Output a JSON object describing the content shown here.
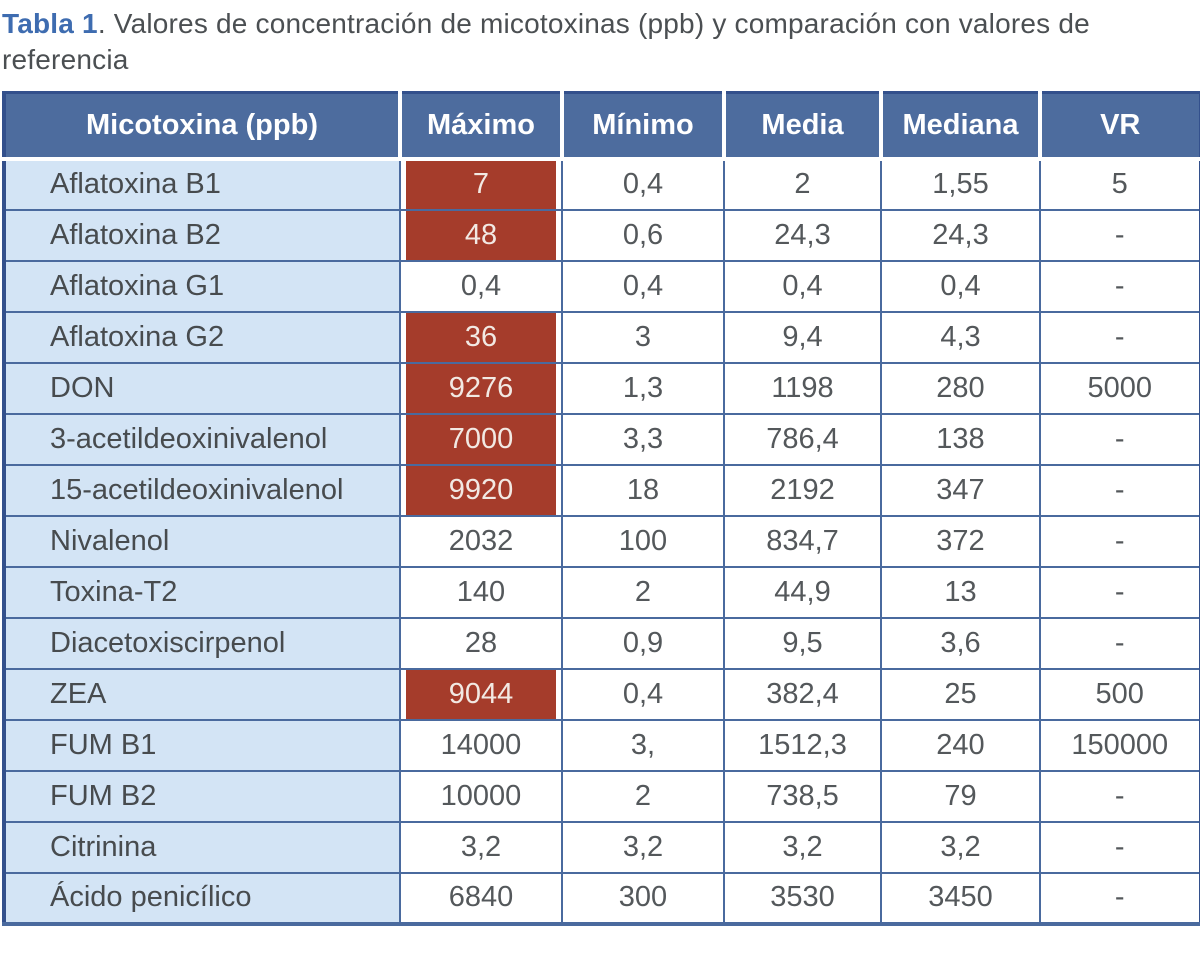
{
  "caption": {
    "label": "Tabla 1",
    "text": ". Valores de concentración de micotoxinas (ppb) y comparación con valores de referencia"
  },
  "table": {
    "columns": [
      "Micotoxina (ppb)",
      "Máximo",
      "Mínimo",
      "Media",
      "Mediana",
      "VR"
    ],
    "rows": [
      {
        "name": "Aflatoxina B1",
        "max": "7",
        "max_highlight": true,
        "min": "0,4",
        "media": "2",
        "mediana": "1,55",
        "vr": "5"
      },
      {
        "name": "Aflatoxina B2",
        "max": "48",
        "max_highlight": true,
        "min": "0,6",
        "media": "24,3",
        "mediana": "24,3",
        "vr": "-"
      },
      {
        "name": "Aflatoxina G1",
        "max": "0,4",
        "max_highlight": false,
        "min": "0,4",
        "media": "0,4",
        "mediana": "0,4",
        "vr": "-"
      },
      {
        "name": "Aflatoxina G2",
        "max": "36",
        "max_highlight": true,
        "min": "3",
        "media": "9,4",
        "mediana": "4,3",
        "vr": "-"
      },
      {
        "name": "DON",
        "max": "9276",
        "max_highlight": true,
        "min": "1,3",
        "media": "1198",
        "mediana": "280",
        "vr": "5000"
      },
      {
        "name": "3-acetildeoxinivalenol",
        "max": "7000",
        "max_highlight": true,
        "min": "3,3",
        "media": "786,4",
        "mediana": "138",
        "vr": "-"
      },
      {
        "name": "15-acetildeoxinivalenol",
        "max": "9920",
        "max_highlight": true,
        "min": "18",
        "media": "2192",
        "mediana": "347",
        "vr": "-"
      },
      {
        "name": "Nivalenol",
        "max": "2032",
        "max_highlight": false,
        "min": "100",
        "media": "834,7",
        "mediana": "372",
        "vr": "-"
      },
      {
        "name": "Toxina-T2",
        "max": "140",
        "max_highlight": false,
        "min": "2",
        "media": "44,9",
        "mediana": "13",
        "vr": "-"
      },
      {
        "name": "Diacetoxiscirpenol",
        "max": "28",
        "max_highlight": false,
        "min": "0,9",
        "media": "9,5",
        "mediana": "3,6",
        "vr": "-"
      },
      {
        "name": "ZEA",
        "max": "9044",
        "max_highlight": true,
        "min": "0,4",
        "media": "382,4",
        "mediana": "25",
        "vr": "500"
      },
      {
        "name": "FUM B1",
        "max": "14000",
        "max_highlight": false,
        "min": "3,",
        "media": "1512,3",
        "mediana": "240",
        "vr": "150000"
      },
      {
        "name": "FUM B2",
        "max": "10000",
        "max_highlight": false,
        "min": "2",
        "media": "738,5",
        "mediana": "79",
        "vr": "-"
      },
      {
        "name": "Citrinina",
        "max": "3,2",
        "max_highlight": false,
        "min": "3,2",
        "media": "3,2",
        "mediana": "3,2",
        "vr": "-"
      },
      {
        "name": "Ácido penicílico",
        "max": "6840",
        "max_highlight": false,
        "min": "300",
        "media": "3530",
        "mediana": "3450",
        "vr": "-"
      }
    ]
  },
  "colors": {
    "caption_accent": "#3e6cb0",
    "caption_text": "#4b4f52",
    "header_bg": "#4d6c9e",
    "header_text": "#ffffff",
    "row_label_bg": "#d3e4f5",
    "grid_line": "#4a6a9e",
    "outer_border": "#33508c",
    "highlight_bg": "#a53c2b",
    "highlight_text": "#f2e9e3",
    "cell_text": "#54585b",
    "row_label_text": "#474b4e"
  }
}
